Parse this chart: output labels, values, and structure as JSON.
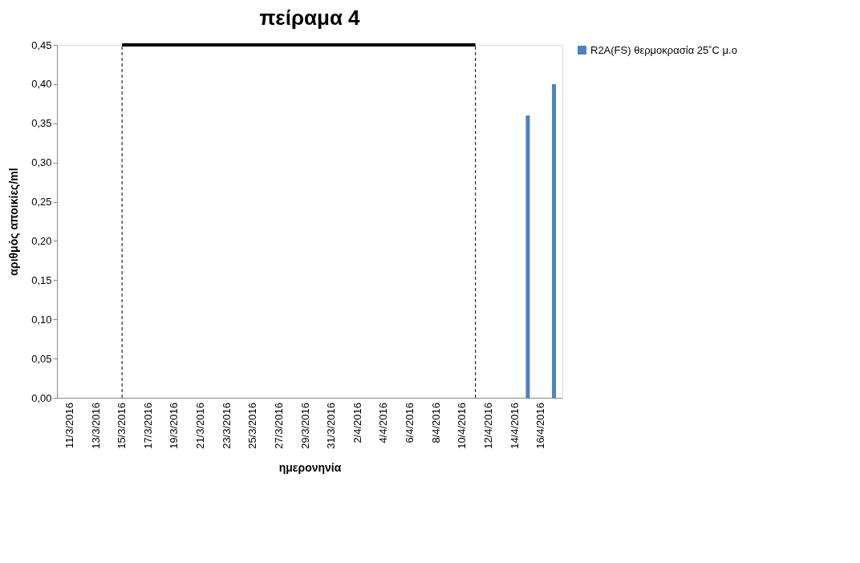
{
  "chart_data": {
    "type": "bar",
    "title": "πείραμα 4",
    "xlabel": "ημερονηνία",
    "ylabel": "αριθμός αποικίες/ml",
    "x": [
      "2016-04-15",
      "2016-04-17"
    ],
    "series": [
      {
        "name": "R2A(FS) θερμοκρασία 25˚C μ.ο",
        "color": "#4f81bd",
        "values": [
          0.36,
          0.4
        ]
      },
      {
        "type": "line",
        "color": "#000000",
        "x": [
          "2016-03-15",
          "2016-04-11"
        ],
        "values": [
          0.45,
          0.45
        ]
      }
    ],
    "xlim": [
      "2016-03-10T08:00",
      "2016-04-17T08:00"
    ],
    "xticks": [
      {
        "value": "2016-03-11",
        "label": "11/3/2016"
      },
      {
        "value": "2016-03-13",
        "label": "13/3/2016"
      },
      {
        "value": "2016-03-15",
        "label": "15/3/2016"
      },
      {
        "value": "2016-03-17",
        "label": "17/3/2016"
      },
      {
        "value": "2016-03-19",
        "label": "19/3/2016"
      },
      {
        "value": "2016-03-21",
        "label": "21/3/2016"
      },
      {
        "value": "2016-03-23",
        "label": "23/3/2016"
      },
      {
        "value": "2016-03-25",
        "label": "25/3/2016"
      },
      {
        "value": "2016-03-27",
        "label": "27/3/2016"
      },
      {
        "value": "2016-03-29",
        "label": "29/3/2016"
      },
      {
        "value": "2016-03-31",
        "label": "31/3/2016"
      },
      {
        "value": "2016-04-02",
        "label": "2/4/2016"
      },
      {
        "value": "2016-04-04",
        "label": "4/4/2016"
      },
      {
        "value": "2016-04-06",
        "label": "6/4/2016"
      },
      {
        "value": "2016-04-08",
        "label": "8/4/2016"
      },
      {
        "value": "2016-04-10",
        "label": "10/4/2016"
      },
      {
        "value": "2016-04-12",
        "label": "12/4/2016"
      },
      {
        "value": "2016-04-14",
        "label": "14/4/2016"
      },
      {
        "value": "2016-04-16",
        "label": "16/4/2016"
      }
    ],
    "ylim": [
      0,
      0.45
    ],
    "yticks": [
      {
        "value": 0,
        "label": "0,00"
      },
      {
        "value": 0.05,
        "label": "0,05"
      },
      {
        "value": 0.1,
        "label": "0,10"
      },
      {
        "value": 0.15,
        "label": "0,15"
      },
      {
        "value": 0.2,
        "label": "0,20"
      },
      {
        "value": 0.25,
        "label": "0,25"
      },
      {
        "value": 0.3,
        "label": "0,30"
      },
      {
        "value": 0.35,
        "label": "0,35"
      },
      {
        "value": 0.4,
        "label": "0,40"
      },
      {
        "value": 0.45,
        "label": "0,45"
      }
    ],
    "ref_lines": [
      {
        "axis": "x",
        "value": "2016-03-15",
        "color": "#000000",
        "line_style": "dashed"
      },
      {
        "axis": "x",
        "value": "2016-04-11",
        "color": "#000000",
        "line_style": "dashed"
      }
    ],
    "grid": false,
    "legend": "right"
  }
}
